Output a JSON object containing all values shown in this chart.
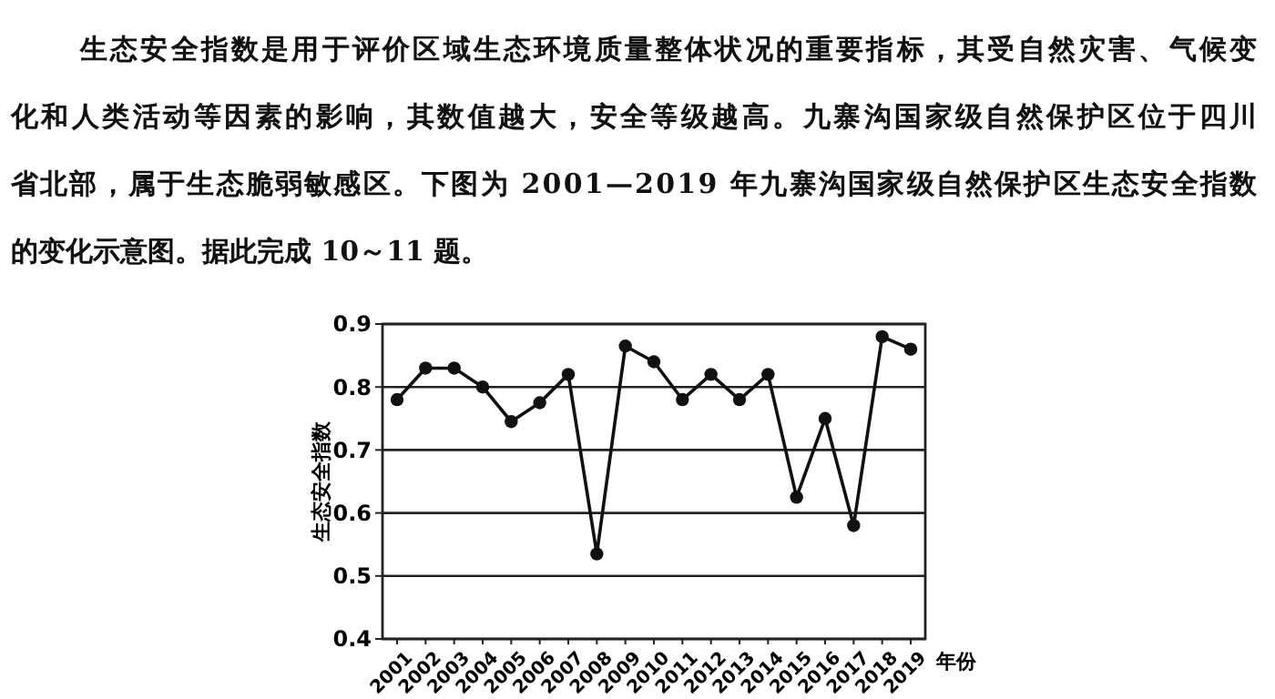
{
  "chart_data": {
    "type": "line",
    "annotations": [
      "生态安全指数是用于评价区域生态环境质量整体状况的重要指标，其受自然灾害、气候变",
      "化和人类活动等因素的影响，其数值越大，安全等级越高。九寨沟国家级自然保护区位于四川",
      "省北部，属于生态脆弱敏感区。下图为 2001—2019 年九寨沟国家级自然保护区生态安全指数",
      "的变化示意图。据此完成 10～11 题。"
    ],
    "categories": [
      "2001",
      "2002",
      "2003",
      "2004",
      "2005",
      "2006",
      "2007",
      "2008",
      "2009",
      "2010",
      "2011",
      "2012",
      "2013",
      "2014",
      "2015",
      "2016",
      "2017",
      "2018",
      "2019"
    ],
    "series": [
      {
        "color": "#111111",
        "values": [
          0.78,
          0.83,
          0.83,
          0.8,
          0.745,
          0.775,
          0.82,
          0.535,
          0.865,
          0.84,
          0.78,
          0.82,
          0.78,
          0.82,
          0.625,
          0.75,
          0.58,
          0.88,
          0.86
        ]
      }
    ],
    "xlabel": "年份",
    "ylabel": "生态安全指数",
    "ylim": [
      0.4,
      0.9
    ],
    "yticks": [
      0.4,
      0.5,
      0.6,
      0.7,
      0.8,
      0.9
    ],
    "grid": "y",
    "marker": "circle",
    "line_style": "solid"
  }
}
